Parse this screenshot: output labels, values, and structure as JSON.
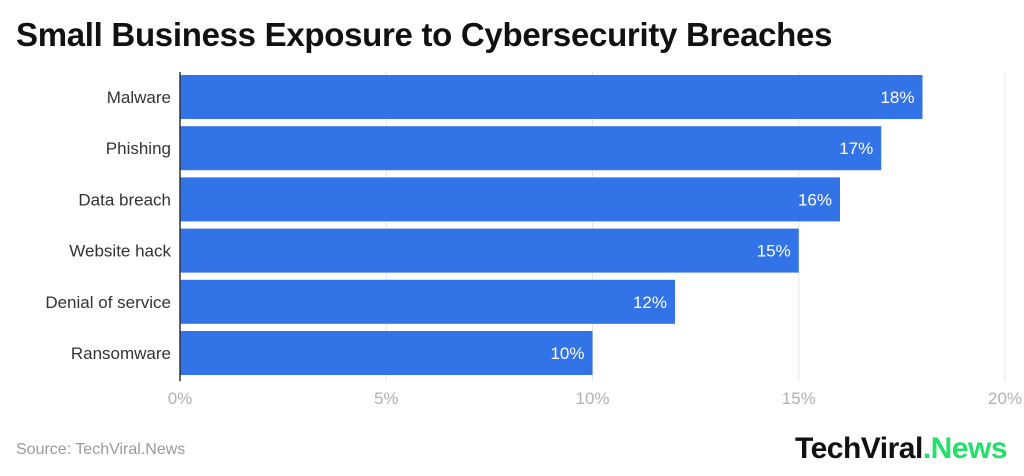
{
  "chart_data": {
    "type": "bar",
    "orientation": "horizontal",
    "title": "Small Business Exposure to Cybersecurity Breaches",
    "categories": [
      "Malware",
      "Phishing",
      "Data breach",
      "Website hack",
      "Denial of service",
      "Ransomware"
    ],
    "values": [
      18,
      17,
      16,
      15,
      12,
      10
    ],
    "data_labels": [
      "18%",
      "17%",
      "16%",
      "15%",
      "12%",
      "10%"
    ],
    "xlim": [
      0,
      20
    ],
    "xticks": [
      0,
      5,
      10,
      15,
      20
    ],
    "xtick_labels": [
      "0%",
      "5%",
      "10%",
      "15%",
      "20%"
    ],
    "grid": true,
    "bar_color": "#3373e8"
  },
  "source": "Source: TechViral.News",
  "logo": {
    "part1": "TechViral",
    "part2": ".News",
    "accent": "#22e06a"
  }
}
